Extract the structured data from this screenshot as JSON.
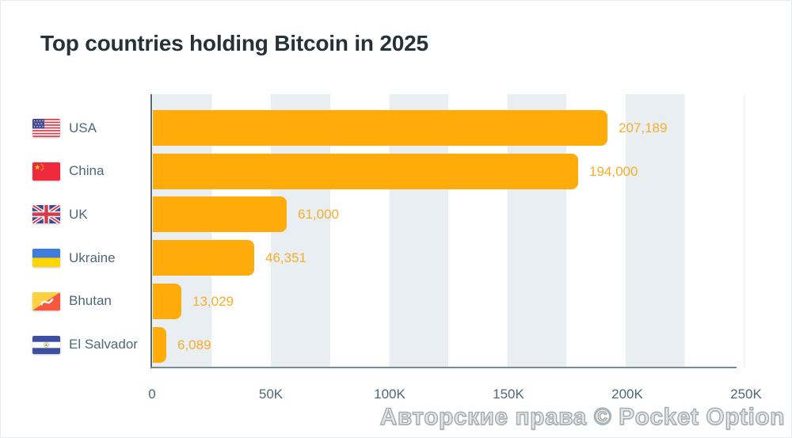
{
  "title": "Top countries holding Bitcoin in 2025",
  "watermark": "Авторские права © Pocket Option",
  "colors": {
    "bar": "#FFAC0B",
    "value_label": "#F7AE2B",
    "band": "#E9EEF2",
    "title_text": "#263238",
    "label_text": "#4D6878",
    "axis": "#78909C"
  },
  "chart_data": {
    "type": "bar",
    "orientation": "horizontal",
    "title": "Top countries holding Bitcoin in 2025",
    "categories": [
      "USA",
      "China",
      "UK",
      "Ukraine",
      "Bhutan",
      "El Salvador"
    ],
    "values": [
      207189,
      194000,
      61000,
      46351,
      13029,
      6089
    ],
    "value_labels": [
      "207,189",
      "194,000",
      "61,000",
      "46,351",
      "13,029",
      "6,089"
    ],
    "flag_icons": [
      "usa-flag-icon",
      "china-flag-icon",
      "uk-flag-icon",
      "ukraine-flag-icon",
      "bhutan-flag-icon",
      "el-salvador-flag-icon"
    ],
    "xlabel": "",
    "ylabel": "",
    "xlim": [
      0,
      250000
    ],
    "x_ticks": [
      {
        "value": 0,
        "label": "0"
      },
      {
        "value": 50000,
        "label": "50K"
      },
      {
        "value": 100000,
        "label": "100K"
      },
      {
        "value": 150000,
        "label": "150K"
      },
      {
        "value": 200000,
        "label": "200K"
      },
      {
        "value": 250000,
        "label": "250K"
      }
    ],
    "grid": "alternating-vertical-bands",
    "legend": "none"
  }
}
